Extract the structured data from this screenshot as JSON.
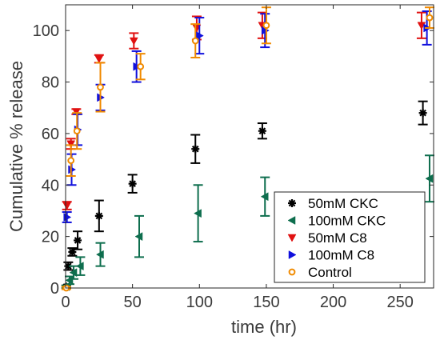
{
  "chart_data": {
    "type": "scatter",
    "title": "",
    "xlabel": "time (hr)",
    "ylabel": "Cumulative % release",
    "xlim": [
      0,
      275
    ],
    "ylim": [
      0,
      110
    ],
    "xticks": [
      0,
      50,
      100,
      150,
      200,
      250
    ],
    "yticks": [
      0,
      20,
      40,
      60,
      80,
      100
    ],
    "grid": false,
    "legend_position": "bottom-right",
    "series": [
      {
        "name": "50mM CKC",
        "marker": "asterisk",
        "color": "#000000",
        "x": [
          0.5,
          2,
          5,
          9,
          25,
          50,
          97,
          147,
          267
        ],
        "y": [
          0.5,
          8.5,
          14,
          18.5,
          28,
          40.5,
          54,
          61,
          68
        ],
        "err": [
          0.5,
          1.5,
          1.5,
          3.5,
          6,
          3.5,
          5.5,
          3,
          4.5
        ]
      },
      {
        "name": "100mM CKC",
        "marker": "triangle-left",
        "color": "#0e6e4e",
        "x": [
          0.5,
          3,
          6,
          11,
          26,
          55,
          99,
          149,
          272
        ],
        "y": [
          0.5,
          3,
          6,
          8.5,
          13,
          20,
          29,
          35.5,
          42.5
        ],
        "err": [
          0.5,
          1.5,
          2.5,
          3.5,
          4.5,
          8,
          11,
          7.5,
          9
        ]
      },
      {
        "name": "50mM C8",
        "marker": "triangle-down",
        "color": "#e01010",
        "x": [
          1,
          4,
          8,
          25,
          51,
          98,
          147,
          266
        ],
        "y": [
          32,
          56,
          68.5,
          89,
          96,
          101,
          102,
          102
        ],
        "err": [
          1.5,
          2,
          1,
          1.5,
          3,
          4.5,
          5,
          5
        ]
      },
      {
        "name": "100mM C8",
        "marker": "triangle-right",
        "color": "#1010dd",
        "x": [
          1,
          4.5,
          9,
          26,
          53,
          100,
          149,
          270
        ],
        "y": [
          27.5,
          46,
          61.5,
          74,
          86,
          98,
          100,
          101
        ],
        "err": [
          2,
          6,
          6,
          5,
          6,
          7,
          6.5,
          6.5
        ]
      },
      {
        "name": "Control",
        "marker": "circle",
        "color": "#f08a00",
        "x": [
          0.5,
          4,
          8.5,
          26,
          56,
          97,
          150,
          272
        ],
        "y": [
          0,
          49.5,
          61,
          78,
          86,
          96,
          102,
          105
        ],
        "err": [
          0.5,
          6,
          7,
          9.5,
          5,
          6.5,
          7,
          4
        ]
      }
    ]
  }
}
